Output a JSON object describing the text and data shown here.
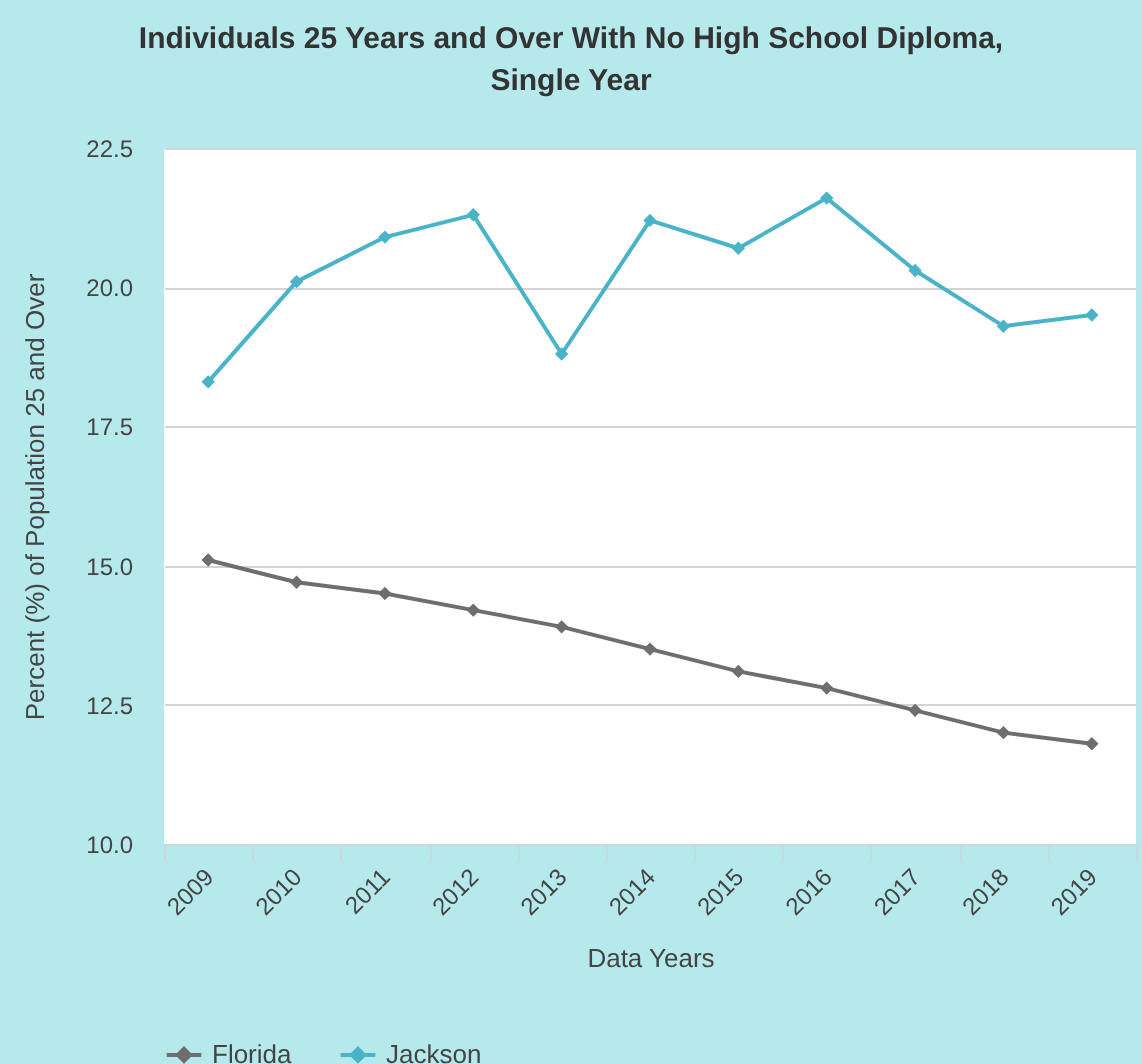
{
  "chart_data": {
    "type": "line",
    "title": "Individuals 25 Years and Over With No High School Diploma, Single Year",
    "xlabel": "Data Years",
    "ylabel": "Percent (%) of Population 25 and Over",
    "categories": [
      "2009",
      "2010",
      "2011",
      "2012",
      "2013",
      "2014",
      "2015",
      "2016",
      "2017",
      "2018",
      "2019"
    ],
    "series": [
      {
        "name": "Florida",
        "color": "#6e6e6e",
        "values": [
          15.1,
          14.7,
          14.5,
          14.2,
          13.9,
          13.5,
          13.1,
          12.8,
          12.4,
          12.0,
          11.8
        ]
      },
      {
        "name": "Jackson",
        "color": "#4ab3c8",
        "values": [
          18.3,
          20.1,
          20.9,
          21.3,
          18.8,
          21.2,
          20.7,
          21.6,
          20.3,
          19.3,
          19.5
        ]
      }
    ],
    "ylim": [
      10,
      22.5
    ],
    "yticks": [
      {
        "value": 10,
        "label": "10.0"
      },
      {
        "value": 12.5,
        "label": "12.5"
      },
      {
        "value": 15,
        "label": "15.0"
      },
      {
        "value": 17.5,
        "label": "17.5"
      },
      {
        "value": 20,
        "label": "20.0"
      },
      {
        "value": 22.5,
        "label": "22.5"
      }
    ],
    "grid": "y",
    "legend": "bottom",
    "marker": "diamond",
    "line_style": "solid"
  }
}
